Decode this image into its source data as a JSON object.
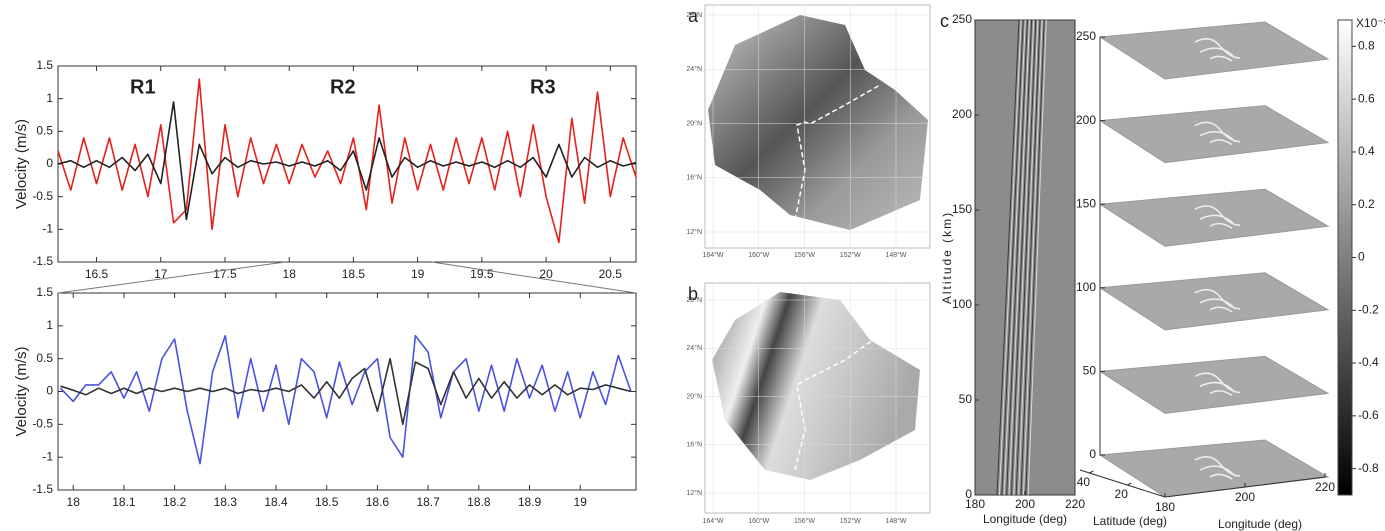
{
  "chart_data": [
    {
      "type": "line",
      "ylabel": "Velocity (m/s)",
      "annotations": [
        "R1",
        "R2",
        "R3"
      ],
      "xlim": [
        16.2,
        20.7
      ],
      "ylim": [
        -1.5,
        1.5
      ],
      "xticks": [
        16.5,
        17,
        17.5,
        18,
        18.5,
        19,
        19.5,
        20,
        20.5
      ],
      "yticks": [
        -1.5,
        -1,
        -0.5,
        0,
        0.5,
        1,
        1.5
      ],
      "x": [
        16.2,
        16.3,
        16.4,
        16.5,
        16.6,
        16.7,
        16.8,
        16.9,
        17.0,
        17.1,
        17.2,
        17.3,
        17.4,
        17.5,
        17.6,
        17.7,
        17.8,
        17.9,
        18.0,
        18.1,
        18.2,
        18.3,
        18.4,
        18.5,
        18.6,
        18.7,
        18.8,
        18.9,
        19.0,
        19.1,
        19.2,
        19.3,
        19.4,
        19.5,
        19.6,
        19.7,
        19.8,
        19.9,
        20.0,
        20.1,
        20.2,
        20.3,
        20.4,
        20.5,
        20.6,
        20.7
      ],
      "series": [
        {
          "color": "#e8201c",
          "values": [
            0.2,
            -0.4,
            0.4,
            -0.3,
            0.4,
            -0.4,
            0.3,
            -0.5,
            0.6,
            -0.9,
            -0.7,
            1.3,
            -1.0,
            0.6,
            -0.5,
            0.4,
            -0.3,
            0.3,
            -0.3,
            0.3,
            -0.2,
            0.2,
            -0.3,
            0.4,
            -0.7,
            0.9,
            -0.6,
            0.4,
            -0.4,
            0.3,
            -0.4,
            0.4,
            -0.3,
            0.4,
            -0.4,
            0.5,
            -0.5,
            0.6,
            -0.5,
            -1.2,
            0.7,
            -0.6,
            1.1,
            -0.5,
            0.4,
            -0.2
          ]
        },
        {
          "color": "#222222",
          "values": [
            0,
            0.05,
            -0.05,
            0.05,
            -0.05,
            0.1,
            -0.1,
            0.15,
            -0.3,
            0.95,
            -0.85,
            0.3,
            -0.15,
            0.1,
            -0.05,
            0.05,
            0,
            0.03,
            -0.03,
            0.03,
            -0.03,
            0.05,
            -0.1,
            0.2,
            -0.4,
            0.4,
            -0.2,
            0.1,
            -0.05,
            0.05,
            -0.03,
            0.03,
            -0.03,
            0.03,
            -0.05,
            0.05,
            -0.05,
            0.1,
            -0.2,
            0.3,
            -0.2,
            0.1,
            -0.05,
            0.05,
            -0.03,
            0.02
          ]
        }
      ]
    },
    {
      "type": "line",
      "ylabel": "Velocity (m/s)",
      "xlim": [
        17.97,
        19.11
      ],
      "ylim": [
        -1.5,
        1.5
      ],
      "xticks": [
        18,
        18.1,
        18.2,
        18.3,
        18.4,
        18.5,
        18.6,
        18.7,
        18.8,
        18.9,
        19
      ],
      "yticks": [
        -1.5,
        -1,
        -0.5,
        0,
        0.5,
        1,
        1.5
      ],
      "x": [
        17.975,
        18.0,
        18.025,
        18.05,
        18.075,
        18.1,
        18.125,
        18.15,
        18.175,
        18.2,
        18.225,
        18.25,
        18.275,
        18.3,
        18.325,
        18.35,
        18.375,
        18.4,
        18.425,
        18.45,
        18.475,
        18.5,
        18.525,
        18.55,
        18.575,
        18.6,
        18.625,
        18.65,
        18.675,
        18.7,
        18.725,
        18.75,
        18.775,
        18.8,
        18.825,
        18.85,
        18.875,
        18.9,
        18.925,
        18.95,
        18.975,
        19.0,
        19.025,
        19.05,
        19.075,
        19.1
      ],
      "series": [
        {
          "color": "#4a52e0",
          "values": [
            0.05,
            -0.15,
            0.1,
            0.1,
            0.3,
            -0.1,
            0.3,
            -0.3,
            0.5,
            0.8,
            -0.3,
            -1.1,
            0.3,
            0.85,
            -0.4,
            0.5,
            -0.3,
            0.4,
            -0.5,
            0.5,
            0.3,
            -0.4,
            0.45,
            -0.2,
            0.3,
            0.5,
            -0.7,
            -1.0,
            0.85,
            0.6,
            -0.4,
            0.3,
            0.5,
            -0.3,
            0.4,
            -0.3,
            0.5,
            -0.1,
            0.4,
            -0.3,
            0.3,
            -0.4,
            0.3,
            -0.2,
            0.55,
            0
          ]
        },
        {
          "color": "#333333",
          "values": [
            0.08,
            0.02,
            -0.05,
            0.05,
            -0.03,
            0.05,
            -0.03,
            0.05,
            0,
            0.05,
            0,
            0.05,
            0,
            0.05,
            -0.03,
            0.03,
            0,
            0.05,
            0,
            0.1,
            -0.1,
            0.15,
            -0.1,
            0.2,
            0.35,
            -0.3,
            0.5,
            -0.5,
            0.45,
            0.35,
            -0.2,
            0.3,
            -0.1,
            0.2,
            -0.1,
            0.15,
            -0.1,
            0.1,
            -0.05,
            0.1,
            -0.05,
            0.05,
            0.03,
            0.1,
            0.05,
            0
          ]
        }
      ]
    },
    {
      "type": "keogram",
      "panel": "c",
      "ylabel": "Altitude (km)",
      "xlabel": "Longitude (deg)",
      "xlim": [
        180,
        220
      ],
      "xticks": [
        180,
        200,
        220
      ],
      "ylim": [
        0,
        250
      ],
      "yticks": [
        0,
        50,
        100,
        150,
        200,
        250
      ]
    },
    {
      "type": "slices",
      "xlabel": "Longitude (deg)",
      "ylabel": "Latitude (deg)",
      "zlim": [
        0,
        250
      ],
      "zticks": [
        0,
        50,
        100,
        150,
        200,
        250
      ],
      "xlim": [
        180,
        220
      ],
      "xticks": [
        180,
        200,
        220
      ],
      "ylim": [
        0,
        45
      ],
      "yticks": [
        40,
        20
      ],
      "colorbar": {
        "label": "X10⁻³",
        "lim": [
          -0.9,
          0.9
        ],
        "ticks": [
          -0.8,
          -0.6,
          -0.4,
          -0.2,
          0,
          0.2,
          0.4,
          0.6,
          0.8
        ]
      }
    }
  ],
  "maps": [
    {
      "panel": "a",
      "lat_labels": [
        "28°N",
        "24°N",
        "20°N",
        "16°N",
        "12°N"
      ],
      "lon_labels": [
        "164°W",
        "160°W",
        "156°W",
        "152°W",
        "148°W"
      ]
    },
    {
      "panel": "b",
      "lat_labels": [
        "28°N",
        "24°N",
        "20°N",
        "16°N",
        "12°N"
      ],
      "lon_labels": [
        "164°W",
        "160°W",
        "156°W",
        "152°W",
        "148°W"
      ]
    }
  ]
}
